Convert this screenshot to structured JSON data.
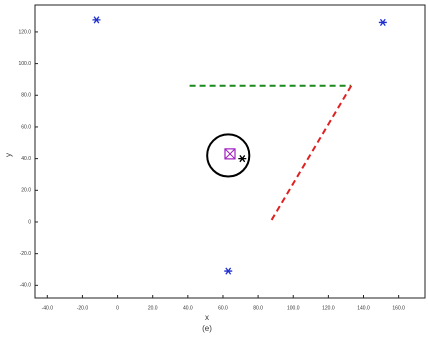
{
  "chart_data": {
    "type": "scatter",
    "xlabel": "x",
    "ylabel": "y",
    "caption": "(e)",
    "xlim": [
      -47,
      175
    ],
    "ylim": [
      -48,
      137
    ],
    "xticks": [
      {
        "value": -40,
        "label": "-40.0"
      },
      {
        "value": -20,
        "label": "-20.0"
      },
      0,
      {
        "value": 20,
        "label": "20.0"
      },
      {
        "value": 40,
        "label": "40.0"
      },
      {
        "value": 60,
        "label": "60.0"
      },
      {
        "value": 80,
        "label": "80.0"
      },
      {
        "value": 100,
        "label": "100.0"
      },
      {
        "value": 120,
        "label": "120.0"
      },
      {
        "value": 140,
        "label": "140.0"
      },
      {
        "value": 160,
        "label": "160.0"
      }
    ],
    "yticks": [
      {
        "value": -40,
        "label": "-40.0"
      },
      {
        "value": -20,
        "label": "-20.0"
      },
      0,
      {
        "value": 20,
        "label": "20.0"
      },
      {
        "value": 40,
        "label": "40.0"
      },
      {
        "value": 60,
        "label": "60.0"
      },
      {
        "value": 80,
        "label": "80.0"
      },
      {
        "value": 100,
        "label": "100.0"
      },
      {
        "value": 120,
        "label": "120.0"
      }
    ],
    "series": [
      {
        "marker": "star",
        "color": "#1f2fd0",
        "x": [
          -12,
          151,
          63
        ],
        "values": [
          127.6,
          126,
          -31
        ]
      },
      {
        "line_style": "dashed",
        "color": "#1a8a1a",
        "x": [
          41,
          133
        ],
        "values": [
          86,
          86
        ]
      },
      {
        "line_style": "dashed",
        "color": "#e02020",
        "x": [
          133,
          87
        ],
        "values": [
          86,
          0
        ]
      },
      {
        "marker": "circle",
        "color": "#000000",
        "x": [
          63
        ],
        "values": [
          42
        ],
        "sizes": [
          12
        ]
      },
      {
        "marker": "square",
        "color": "#a020c0",
        "x": [
          64
        ],
        "values": [
          43
        ]
      },
      {
        "marker": "star",
        "color": "#000000",
        "x": [
          71
        ],
        "values": [
          40
        ]
      }
    ]
  }
}
